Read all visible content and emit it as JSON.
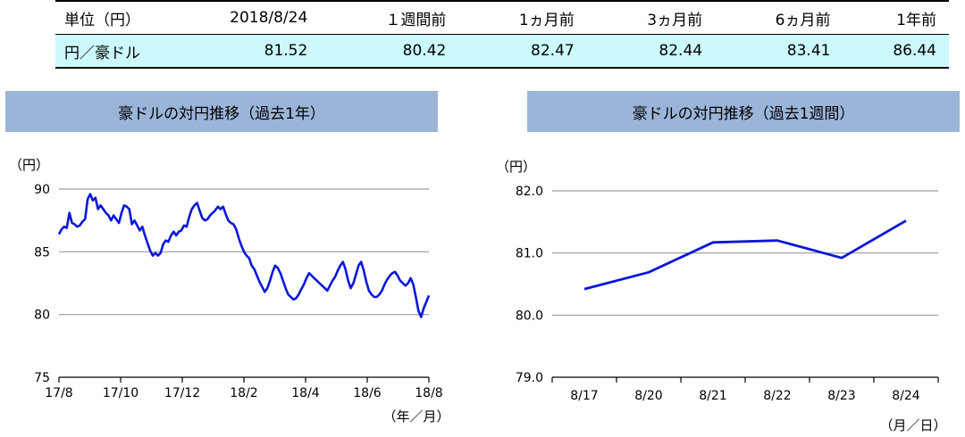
{
  "table": {
    "header": [
      "単位（円）",
      "2018/8/24",
      "１週間前",
      "1ヵ月前",
      "3ヵ月前",
      "6ヵ月前",
      "1年前"
    ],
    "row_label": "円／豪ドル",
    "values": [
      "81.52",
      "80.42",
      "82.47",
      "82.44",
      "83.41",
      "86.44"
    ]
  },
  "chart_data": [
    {
      "type": "line",
      "title": "豪ドルの対円推移（過去1年）",
      "unit_label": "（円）",
      "x_unit_label": "（年／月）",
      "ylim": [
        75,
        90
      ],
      "yticks": [
        "75",
        "80",
        "85",
        "90"
      ],
      "xticks": [
        "17/8",
        "17/10",
        "17/12",
        "18/2",
        "18/4",
        "18/6",
        "18/8"
      ],
      "grid": true,
      "color": "#0b17d9",
      "series": [
        {
          "values": [
            86.4,
            86.8,
            87.0,
            86.9,
            88.1,
            87.3,
            87.2,
            87.0,
            87.1,
            87.4,
            87.6,
            89.2,
            89.6,
            89.1,
            89.3,
            88.4,
            88.7,
            88.4,
            88.1,
            87.9,
            87.5,
            87.9,
            87.6,
            87.3,
            88.1,
            88.7,
            88.6,
            88.4,
            87.2,
            87.5,
            87.1,
            86.7,
            87.0,
            86.3,
            85.7,
            85.1,
            84.7,
            84.9,
            84.7,
            84.9,
            85.6,
            85.9,
            85.8,
            86.3,
            86.6,
            86.3,
            86.6,
            86.7,
            87.1,
            87.0,
            87.8,
            88.4,
            88.7,
            88.9,
            88.3,
            87.7,
            87.5,
            87.6,
            87.9,
            88.1,
            88.3,
            88.6,
            88.4,
            88.6,
            88.0,
            87.5,
            87.3,
            87.2,
            86.8,
            86.1,
            85.5,
            85.0,
            84.7,
            84.5,
            83.9,
            83.6,
            83.1,
            82.6,
            82.2,
            81.8,
            82.1,
            82.7,
            83.4,
            83.9,
            83.7,
            83.3,
            82.7,
            82.1,
            81.6,
            81.4,
            81.2,
            81.3,
            81.6,
            82.0,
            82.4,
            82.9,
            83.3,
            83.1,
            82.9,
            82.7,
            82.5,
            82.3,
            82.1,
            81.9,
            82.3,
            82.7,
            83.0,
            83.5,
            83.9,
            84.2,
            83.6,
            82.7,
            82.1,
            82.5,
            83.2,
            83.9,
            84.2,
            83.5,
            82.6,
            81.9,
            81.6,
            81.4,
            81.4,
            81.6,
            81.9,
            82.4,
            82.8,
            83.1,
            83.3,
            83.4,
            83.1,
            82.7,
            82.5,
            82.3,
            82.5,
            82.9,
            82.4,
            81.4,
            80.3,
            79.8,
            80.5,
            81.0,
            81.52
          ]
        }
      ]
    },
    {
      "type": "line",
      "title": "豪ドルの対円推移（過去1週間）",
      "unit_label": "（円）",
      "x_unit_label": "（月／日）",
      "ylim": [
        79.0,
        82.0
      ],
      "yticks": [
        "79.0",
        "80.0",
        "81.0",
        "82.0"
      ],
      "categories": [
        "8/17",
        "8/20",
        "8/21",
        "8/22",
        "8/23",
        "8/24"
      ],
      "grid": true,
      "color": "#0b17d9",
      "series": [
        {
          "values": [
            80.42,
            80.69,
            81.17,
            81.2,
            80.92,
            81.52
          ]
        }
      ]
    }
  ]
}
